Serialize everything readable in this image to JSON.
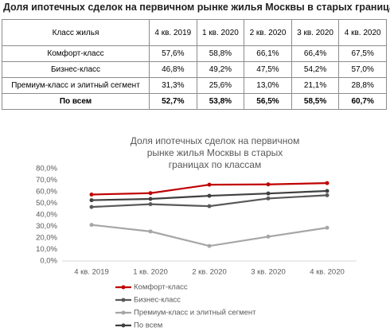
{
  "header": {
    "title": "Доля ипотечных сделок на первичном рынке жилья Москвы в старых границах"
  },
  "table": {
    "columns": [
      "Класс жилья",
      "4 кв. 2019",
      "1 кв. 2020",
      "2 кв. 2020",
      "3 кв. 2020",
      "4 кв. 2020"
    ],
    "rows": [
      [
        "Комфорт-класс",
        "57,6%",
        "58,8%",
        "66,1%",
        "66,4%",
        "67,5%"
      ],
      [
        "Бизнес-класс",
        "46,8%",
        "49,2%",
        "47,5%",
        "54,2%",
        "57,0%"
      ],
      [
        "Премиум-класс и элитный сегмент",
        "31,3%",
        "25,6%",
        "13,0%",
        "21,1%",
        "28,8%"
      ],
      [
        "По всем",
        "52,7%",
        "53,8%",
        "56,5%",
        "58,5%",
        "60,7%"
      ]
    ]
  },
  "chart_data": {
    "type": "line",
    "title": "Доля ипотечных сделок на первичном рынке жилья Москвы в старых границах по классам",
    "categories": [
      "4 кв. 2019",
      "1 кв. 2020",
      "2 кв. 2020",
      "3 кв. 2020",
      "4 кв. 2020"
    ],
    "series": [
      {
        "name": "Комфорт-класс",
        "color": "#c00000",
        "values": [
          57.6,
          58.8,
          66.1,
          66.4,
          67.5
        ]
      },
      {
        "name": "Бизнес-класс",
        "color": "#595959",
        "values": [
          46.8,
          49.2,
          47.5,
          54.2,
          57.0
        ]
      },
      {
        "name": "Премиум-класс и элитный сегмент",
        "color": "#a6a6a6",
        "values": [
          31.3,
          25.6,
          13.0,
          21.1,
          28.8
        ]
      },
      {
        "name": "По всем",
        "color": "#404040",
        "values": [
          52.7,
          53.8,
          56.5,
          58.5,
          60.7
        ]
      }
    ],
    "ylim": [
      0,
      80
    ],
    "yticks": [
      {
        "value": 0,
        "label": "0,0%"
      },
      {
        "value": 10,
        "label": "10,0%"
      },
      {
        "value": 20,
        "label": "20,0%"
      },
      {
        "value": 30,
        "label": "30,0%"
      },
      {
        "value": 40,
        "label": "40,0%"
      },
      {
        "value": 50,
        "label": "50,0%"
      },
      {
        "value": 60,
        "label": "60,0%"
      },
      {
        "value": 70,
        "label": "70,0%"
      },
      {
        "value": 80,
        "label": "80,0%"
      }
    ],
    "grid": false,
    "legend": "bottom"
  }
}
